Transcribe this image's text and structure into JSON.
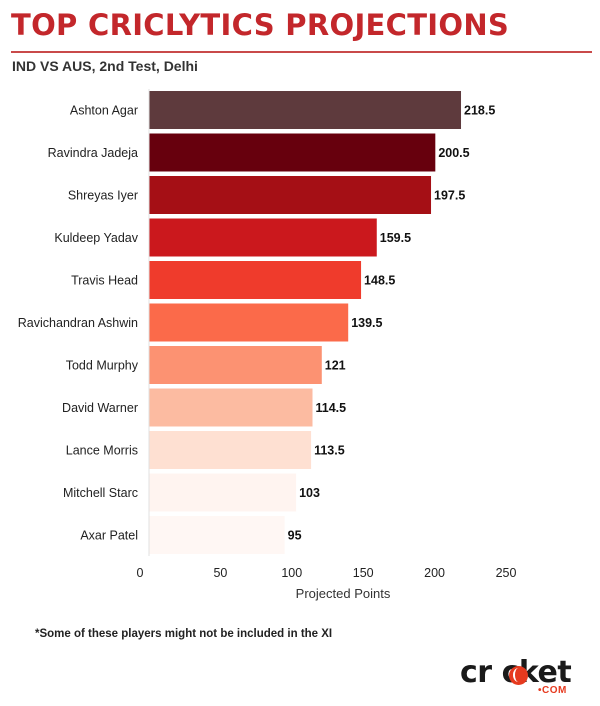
{
  "header": {
    "title": "TOP CRICLYTICS PROJECTIONS",
    "subtitle": "IND VS AUS, 2nd Test, Delhi"
  },
  "chart_data": {
    "type": "bar",
    "orientation": "horizontal",
    "title": "TOP CRICLYTICS PROJECTIONS",
    "subtitle": "IND VS AUS, 2nd Test, Delhi",
    "xlabel": "Projected Points",
    "ylabel": "",
    "xlim": [
      0,
      250
    ],
    "xticks": [
      0,
      50,
      100,
      150,
      200,
      250
    ],
    "grid": false,
    "categories": [
      "Ashton Agar",
      "Ravindra Jadeja",
      "Shreyas Iyer",
      "Kuldeep Yadav",
      "Travis Head",
      "Ravichandran Ashwin",
      "Todd Murphy",
      "David Warner",
      "Lance Morris",
      "Mitchell Starc",
      "Axar Patel"
    ],
    "values": [
      218.5,
      200.5,
      197.5,
      159.5,
      148.5,
      139.5,
      121,
      114.5,
      113.5,
      103,
      95
    ],
    "value_labels": [
      "218.5",
      "200.5",
      "197.5",
      "159.5",
      "148.5",
      "139.5",
      "121",
      "114.5",
      "113.5",
      "103",
      "95"
    ],
    "colors": [
      "#5e3a3d",
      "#67000d",
      "#a50f15",
      "#cb181d",
      "#ef3b2c",
      "#fb6a4a",
      "#fc9272",
      "#fcbba1",
      "#fee0d2",
      "#fff4f0",
      "#fff7f4"
    ]
  },
  "footnote": "*Some of these players might not be included in the XI",
  "logo": {
    "word_pre": "cr",
    "word_post": "cket",
    "suffix": "COM"
  }
}
